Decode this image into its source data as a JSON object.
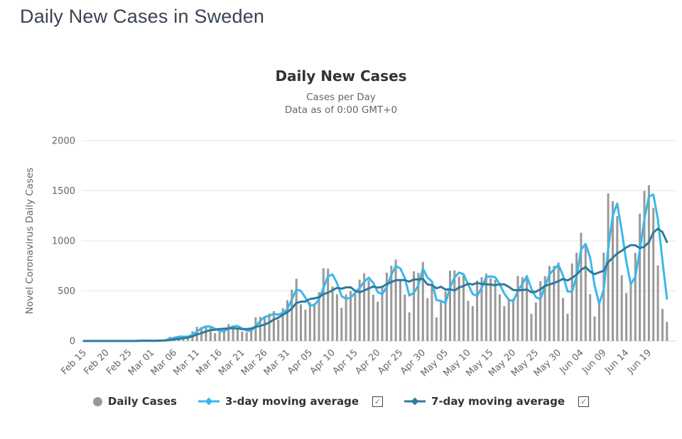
{
  "page": {
    "title": "Daily New Cases in Sweden"
  },
  "chart": {
    "title": "Daily New Cases",
    "subtitle_line1": "Cases per Day",
    "subtitle_line2": "Data as of 0:00 GMT+0",
    "y_axis_title": "Novel Coronavirus Daily Cases"
  },
  "legend": {
    "daily_cases_label": "Daily Cases",
    "ma3_label": "3-day moving average",
    "ma7_label": "7-day moving average",
    "ma3_checked": true,
    "ma7_checked": true,
    "check_glyph": "✓"
  },
  "colors": {
    "bars": "#999999",
    "ma3": "#3bb7ea",
    "ma7": "#30799d",
    "grid": "#e6e6e6",
    "axis_line": "#ccd6eb",
    "tick_text": "#666666",
    "title_text": "#333333",
    "page_title": "#3a4353"
  },
  "chart_data": {
    "type": "bar",
    "title": "Daily New Cases",
    "subtitle": [
      "Cases per Day",
      "Data as of 0:00 GMT+0"
    ],
    "xlabel": "",
    "ylabel": "Novel Coronavirus Daily Cases",
    "ylim": [
      0,
      2000
    ],
    "y_ticks": [
      0,
      500,
      1000,
      1500,
      2000
    ],
    "tick_every": 5,
    "grid": true,
    "legend_position": "bottom",
    "x": [
      "Feb 15",
      "Feb 16",
      "Feb 17",
      "Feb 18",
      "Feb 19",
      "Feb 20",
      "Feb 21",
      "Feb 22",
      "Feb 23",
      "Feb 24",
      "Feb 25",
      "Feb 26",
      "Feb 27",
      "Feb 28",
      "Feb 29",
      "Mar 01",
      "Mar 02",
      "Mar 03",
      "Mar 04",
      "Mar 05",
      "Mar 06",
      "Mar 07",
      "Mar 08",
      "Mar 09",
      "Mar 10",
      "Mar 11",
      "Mar 12",
      "Mar 13",
      "Mar 14",
      "Mar 15",
      "Mar 16",
      "Mar 17",
      "Mar 18",
      "Mar 19",
      "Mar 20",
      "Mar 21",
      "Mar 22",
      "Mar 23",
      "Mar 24",
      "Mar 25",
      "Mar 26",
      "Mar 27",
      "Mar 28",
      "Mar 29",
      "Mar 30",
      "Mar 31",
      "Apr 01",
      "Apr 02",
      "Apr 03",
      "Apr 04",
      "Apr 05",
      "Apr 06",
      "Apr 07",
      "Apr 08",
      "Apr 09",
      "Apr 10",
      "Apr 11",
      "Apr 12",
      "Apr 13",
      "Apr 14",
      "Apr 15",
      "Apr 16",
      "Apr 17",
      "Apr 18",
      "Apr 19",
      "Apr 20",
      "Apr 21",
      "Apr 22",
      "Apr 23",
      "Apr 24",
      "Apr 25",
      "Apr 26",
      "Apr 27",
      "Apr 28",
      "Apr 29",
      "Apr 30",
      "May 01",
      "May 02",
      "May 03",
      "May 04",
      "May 05",
      "May 06",
      "May 07",
      "May 08",
      "May 09",
      "May 10",
      "May 11",
      "May 12",
      "May 13",
      "May 14",
      "May 15",
      "May 16",
      "May 17",
      "May 18",
      "May 19",
      "May 20",
      "May 21",
      "May 22",
      "May 23",
      "May 24",
      "May 25",
      "May 26",
      "May 27",
      "May 28",
      "May 29",
      "May 30",
      "May 31",
      "Jun 01",
      "Jun 02",
      "Jun 03",
      "Jun 04",
      "Jun 05",
      "Jun 06",
      "Jun 07",
      "Jun 08",
      "Jun 09",
      "Jun 10",
      "Jun 11",
      "Jun 12",
      "Jun 13",
      "Jun 14",
      "Jun 15",
      "Jun 16",
      "Jun 17",
      "Jun 18",
      "Jun 19",
      "Jun 20",
      "Jun 21",
      "Jun 22",
      "Jun 23"
    ],
    "series": [
      {
        "name": "Daily Cases",
        "type": "bar",
        "values": [
          0,
          0,
          0,
          0,
          0,
          0,
          0,
          0,
          0,
          0,
          0,
          1,
          5,
          4,
          2,
          1,
          2,
          9,
          10,
          42,
          43,
          44,
          42,
          45,
          97,
          141,
          140,
          155,
          136,
          77,
          90,
          119,
          168,
          149,
          131,
          95,
          87,
          118,
          237,
          242,
          240,
          274,
          298,
          214,
          328,
          407,
          512,
          621,
          365,
          312,
          387,
          376,
          487,
          726,
          722,
          544,
          466,
          332,
          465,
          497,
          482,
          613,
          676,
          606,
          463,
          392,
          545,
          682,
          751,
          812,
          610,
          463,
          286,
          695,
          681,
          790,
          428,
          562,
          235,
          404,
          495,
          702,
          705,
          642,
          656,
          401,
          348,
          602,
          637,
          673,
          625,
          610,
          466,
          348,
          422,
          422,
          649,
          637,
          656,
          271,
          384,
          597,
          648,
          749,
          749,
          784,
          429,
          272,
          774,
          881,
          1080,
          948,
          467,
          245,
          403,
          882,
          1474,
          1396,
          1247,
          657,
          480,
          560,
          880,
          1270,
          1500,
          1555,
          1330,
          755,
          320,
          190
        ]
      },
      {
        "name": "3-day moving average",
        "type": "line",
        "derived": "trailing mean, window 3, of Daily Cases"
      },
      {
        "name": "7-day moving average",
        "type": "line",
        "derived": "trailing mean, window 7, of Daily Cases"
      }
    ]
  }
}
